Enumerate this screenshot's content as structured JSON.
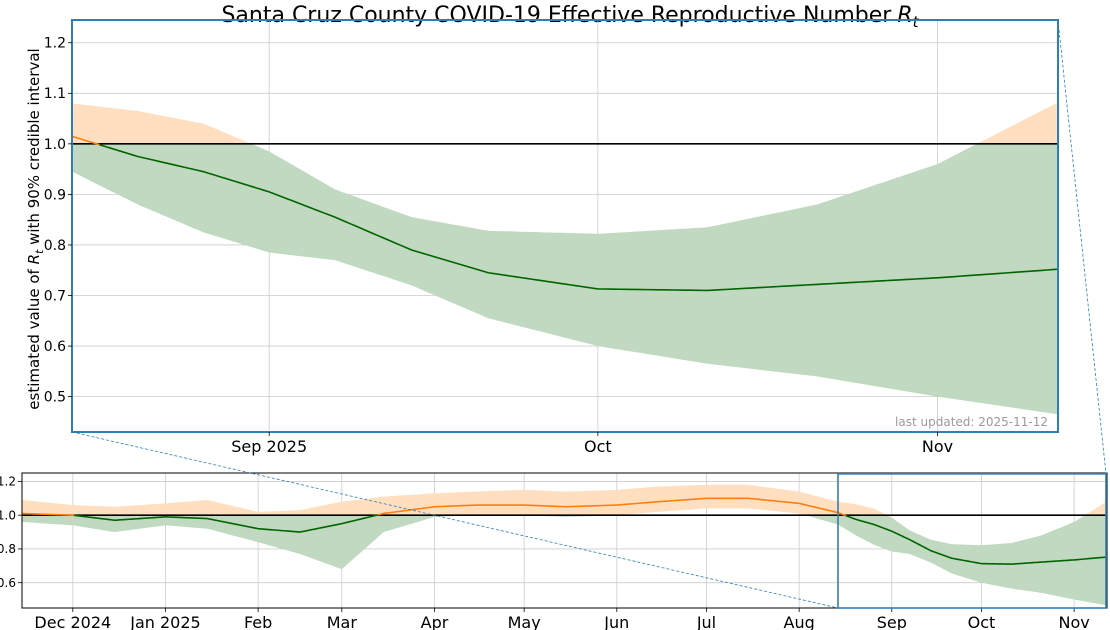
{
  "chart_data": {
    "type": "line",
    "title": "Santa Cruz County COVID-19 Effective Reproductive Number",
    "title_symbol": "R",
    "title_symbol_sub": "t",
    "ylabel_pre": "estimated value of ",
    "ylabel_symbol": "R",
    "ylabel_symbol_sub": "t",
    "ylabel_post": " with 90% credible interval",
    "annotation": "last updated: 2025-11-12",
    "colors": {
      "above": "#ff7f0e",
      "above_band": "#ffdfbf",
      "below": "#006400",
      "below_band": "#c0d9c0",
      "reference": "#000000",
      "frame": "#2f7fb5",
      "grid": "#cccccc"
    },
    "reference_line": 1.0,
    "grid": true,
    "main_panel": {
      "xlim": [
        "2025-08-14",
        "2025-11-12"
      ],
      "ylim": [
        0.43,
        1.245
      ],
      "yticks": [
        "0.5",
        "0.6",
        "0.7",
        "0.8",
        "0.9",
        "1.0",
        "1.1",
        "1.2"
      ],
      "xticks": [
        {
          "date": "2025-09-01",
          "label": "Sep 2025"
        },
        {
          "date": "2025-10-01",
          "label": "Oct"
        },
        {
          "date": "2025-11-01",
          "label": "Nov"
        }
      ]
    },
    "overview_panel": {
      "xlim": [
        "2024-11-14",
        "2025-11-12"
      ],
      "ylim": [
        0.45,
        1.25
      ],
      "yticks": [
        "0.6",
        "0.8",
        "1.0",
        "1.2"
      ],
      "xticks": [
        {
          "date": "2024-12-01",
          "label": "Dec 2024"
        },
        {
          "date": "2025-01-01",
          "label": "Jan 2025"
        },
        {
          "date": "2025-02-01",
          "label": "Feb"
        },
        {
          "date": "2025-03-01",
          "label": "Mar"
        },
        {
          "date": "2025-04-01",
          "label": "Apr"
        },
        {
          "date": "2025-05-01",
          "label": "May"
        },
        {
          "date": "2025-06-01",
          "label": "Jun"
        },
        {
          "date": "2025-07-01",
          "label": "Jul"
        },
        {
          "date": "2025-08-01",
          "label": "Aug"
        },
        {
          "date": "2025-09-01",
          "label": "Sep"
        },
        {
          "date": "2025-10-01",
          "label": "Oct"
        },
        {
          "date": "2025-11-01",
          "label": "Nov"
        }
      ]
    },
    "series": [
      {
        "x": [
          "2024-11-14",
          "2024-12-01",
          "2024-12-15",
          "2025-01-01",
          "2025-01-15",
          "2025-02-01",
          "2025-02-15",
          "2025-03-01",
          "2025-03-15",
          "2025-04-01",
          "2025-04-15",
          "2025-05-01",
          "2025-05-15",
          "2025-06-01",
          "2025-06-15",
          "2025-07-01",
          "2025-07-15",
          "2025-08-01",
          "2025-08-14",
          "2025-08-20",
          "2025-08-26",
          "2025-09-01",
          "2025-09-07",
          "2025-09-14",
          "2025-09-21",
          "2025-10-01",
          "2025-10-11",
          "2025-10-21",
          "2025-11-01",
          "2025-11-12"
        ],
        "y": [
          1.01,
          1.0,
          0.97,
          0.99,
          0.98,
          0.92,
          0.9,
          0.95,
          1.01,
          1.05,
          1.06,
          1.06,
          1.05,
          1.06,
          1.08,
          1.1,
          1.1,
          1.07,
          1.015,
          0.975,
          0.945,
          0.905,
          0.855,
          0.79,
          0.745,
          0.713,
          0.71,
          0.722,
          0.735,
          0.752
        ],
        "lower": [
          0.96,
          0.94,
          0.9,
          0.94,
          0.92,
          0.84,
          0.77,
          0.68,
          0.9,
          0.99,
          1.0,
          1.0,
          0.99,
          1.0,
          1.02,
          1.04,
          1.04,
          1.01,
          0.945,
          0.88,
          0.825,
          0.785,
          0.77,
          0.72,
          0.655,
          0.6,
          0.565,
          0.54,
          0.5,
          0.465
        ],
        "upper": [
          1.09,
          1.06,
          1.05,
          1.07,
          1.09,
          1.02,
          1.03,
          1.08,
          1.11,
          1.13,
          1.14,
          1.15,
          1.14,
          1.15,
          1.17,
          1.18,
          1.18,
          1.14,
          1.08,
          1.065,
          1.04,
          0.985,
          0.91,
          0.855,
          0.828,
          0.822,
          0.835,
          0.88,
          0.96,
          1.082
        ]
      }
    ]
  }
}
